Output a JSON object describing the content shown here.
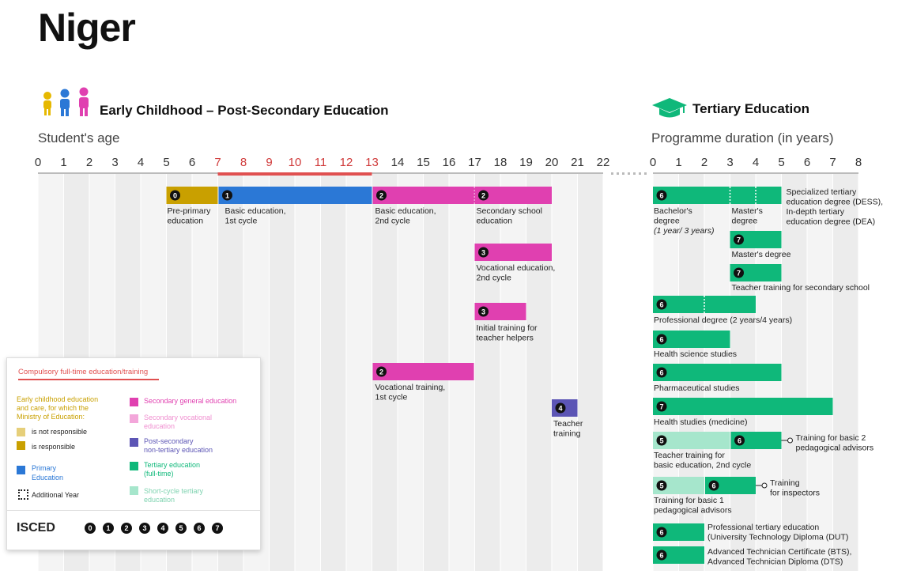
{
  "title": "Niger",
  "sections": {
    "left_title": "Early Childhood – Post-Secondary Education",
    "right_title": "Tertiary Education",
    "left_axis_title": "Student's age",
    "right_axis_title": "Programme duration (in years)"
  },
  "colors": {
    "preprimary": "#c9a000",
    "primary": "#2b78d6",
    "secondary_general": "#e040b0",
    "postsecondary": "#5c55b5",
    "tertiary": "#0fb87a",
    "short_cycle": "#a6e6cc",
    "compulsory": "#e05050"
  },
  "chart_data": [
    {
      "type": "timeline",
      "axis_ticks": [
        "0",
        "1",
        "2",
        "3",
        "4",
        "5",
        "6",
        "7",
        "8",
        "9",
        "10",
        "11",
        "12",
        "13",
        "14",
        "15",
        "16",
        "17",
        "18",
        "19",
        "20",
        "21",
        "22"
      ],
      "compulsory_range": [
        7,
        13
      ],
      "programmes": [
        {
          "label": "Pre-primary education",
          "isced": "0",
          "start": 5,
          "end": 7,
          "color": "preprimary",
          "row": 0
        },
        {
          "label": "Basic education, 1st cycle",
          "isced": "1",
          "start": 7,
          "end": 13,
          "color": "primary",
          "row": 0
        },
        {
          "label": "Basic education, 2nd cycle",
          "isced": "2",
          "start": 13,
          "end": 17,
          "color": "secondary_general",
          "row": 0,
          "dotted": [
            17
          ]
        },
        {
          "label": "Secondary school education",
          "isced": "2",
          "start": 17,
          "end": 20,
          "color": "secondary_general",
          "row": 0
        },
        {
          "label": "Vocational education, 2nd cycle",
          "isced": "3",
          "start": 17,
          "end": 20,
          "color": "secondary_general",
          "row": 1
        },
        {
          "label": "Initial training for teacher helpers",
          "isced": "3",
          "start": 17,
          "end": 19,
          "color": "secondary_general",
          "row": 2
        },
        {
          "label": "Vocational training, 1st cycle",
          "isced": "2",
          "start": 13,
          "end": 17,
          "color": "secondary_general",
          "row": 3
        },
        {
          "label": "Teacher training",
          "isced": "4",
          "start": 20,
          "end": 21,
          "color": "postsecondary",
          "row": 4
        }
      ]
    },
    {
      "type": "timeline",
      "axis_ticks": [
        "0",
        "1",
        "2",
        "3",
        "4",
        "5",
        "6",
        "7",
        "8"
      ],
      "programmes": [
        {
          "label": "Bachelor's degree (1 year/ 3 years)",
          "isced": "6",
          "start": 0,
          "end": 3,
          "color": "tertiary"
        },
        {
          "label": "Master's degree",
          "start": 3,
          "end": 4,
          "color": "tertiary"
        },
        {
          "label": "Specialized tertiary education degree (DESS), In-depth tertiary education degree (DEA)",
          "start": 4,
          "end": 5,
          "color": "tertiary"
        },
        {
          "label": "Master's degree",
          "isced": "7",
          "start": 3,
          "end": 5,
          "color": "tertiary"
        },
        {
          "label": "Teacher training for secondary school",
          "isced": "7",
          "start": 3,
          "end": 5,
          "color": "tertiary"
        },
        {
          "label": "Professional degree (2 years/4 years)",
          "isced": "6",
          "start": 0,
          "end": 4,
          "color": "tertiary"
        },
        {
          "label": "Health science studies",
          "isced": "6",
          "start": 0,
          "end": 3,
          "color": "tertiary"
        },
        {
          "label": "Pharmaceutical studies",
          "isced": "6",
          "start": 0,
          "end": 5,
          "color": "tertiary"
        },
        {
          "label": "Health studies (medicine)",
          "isced": "7",
          "start": 0,
          "end": 7,
          "color": "tertiary"
        },
        {
          "label": "Teacher training for basic education, 2nd cycle",
          "isced": "5",
          "start": 0,
          "end": 3,
          "color": "short_cycle"
        },
        {
          "label": "Training for basic 2 pedagogical advisors",
          "isced": "6",
          "start": 3,
          "end": 5,
          "color": "tertiary"
        },
        {
          "label": "Training for basic 1 pedagogical advisors",
          "isced": "5",
          "start": 0,
          "end": 2,
          "color": "short_cycle"
        },
        {
          "label": "Training for inspectors",
          "isced": "6",
          "start": 2,
          "end": 4,
          "color": "tertiary"
        },
        {
          "label": "Professional tertiary education (University Technology Diploma (DUT)",
          "isced": "6",
          "start": 0,
          "end": 2,
          "color": "tertiary"
        },
        {
          "label": "Advanced Technician Certificate (BTS), Advanced Technician Diploma (DTS)",
          "isced": "6",
          "start": 0,
          "end": 2,
          "color": "tertiary"
        }
      ]
    }
  ],
  "bar_labels": {
    "preprimary": [
      "Pre-primary",
      "education"
    ],
    "basic1": [
      "Basic education,",
      "1st cycle"
    ],
    "basic2": [
      "Basic education,",
      "2nd cycle"
    ],
    "secschool": [
      "Secondary school",
      "education"
    ],
    "voced": [
      "Vocational education,",
      "2nd cycle"
    ],
    "helpers": [
      "Initial training for",
      "teacher helpers"
    ],
    "voctrain": [
      "Vocational training,",
      "1st cycle"
    ],
    "teachtrain": [
      "Teacher",
      "training"
    ],
    "bachelor": [
      "Bachelor's",
      "degree",
      "(1 year/ 3 years)"
    ],
    "masters_a": [
      "Master's",
      "degree"
    ],
    "dess": [
      "Specialized tertiary",
      "education degree (DESS),",
      "In-depth tertiary",
      "education degree (DEA)"
    ],
    "masters_b": [
      "Master's degree"
    ],
    "teach_sec": [
      "Teacher training for secondary school"
    ],
    "profdeg": [
      "Professional degree (2 years/4 years)"
    ],
    "health_sci": [
      "Health science studies"
    ],
    "pharma": [
      "Pharmaceutical studies"
    ],
    "medicine": [
      "Health studies (medicine)"
    ],
    "teach_basic2": [
      "Teacher training for",
      "basic education, 2nd cycle"
    ],
    "adv_basic2": [
      "Training for basic 2",
      "pedagogical advisors"
    ],
    "adv_basic1": [
      "Training for basic 1",
      "pedagogical advisors"
    ],
    "inspectors": [
      "Training",
      "for inspectors"
    ],
    "dut": [
      "Professional tertiary education",
      "(University Technology Diploma (DUT)"
    ],
    "bts": [
      "Advanced Technician Certificate (BTS),",
      "Advanced Technician Diploma (DTS)"
    ]
  },
  "legend": {
    "compulsory": "Compulsory full-time education/training",
    "ecce_heading": [
      "Early childhood education",
      "and care, for which the",
      "Ministry of Education:"
    ],
    "not_responsible": "is not responsible",
    "responsible": "is responsible",
    "primary": [
      "Primary",
      "Education"
    ],
    "additional_year": "Additional Year",
    "secondary_general": "Secondary general education",
    "secondary_vocational": [
      "Secondary vocational",
      "education"
    ],
    "postsecondary": [
      "Post-secondary",
      "non-tertiary education"
    ],
    "tertiary": [
      "Tertiary education",
      "(full-time)"
    ],
    "short_cycle": [
      "Short-cycle tertiary",
      "education"
    ],
    "isced_label": "ISCED",
    "isced_levels": [
      "0",
      "1",
      "2",
      "3",
      "4",
      "5",
      "6",
      "7"
    ]
  }
}
